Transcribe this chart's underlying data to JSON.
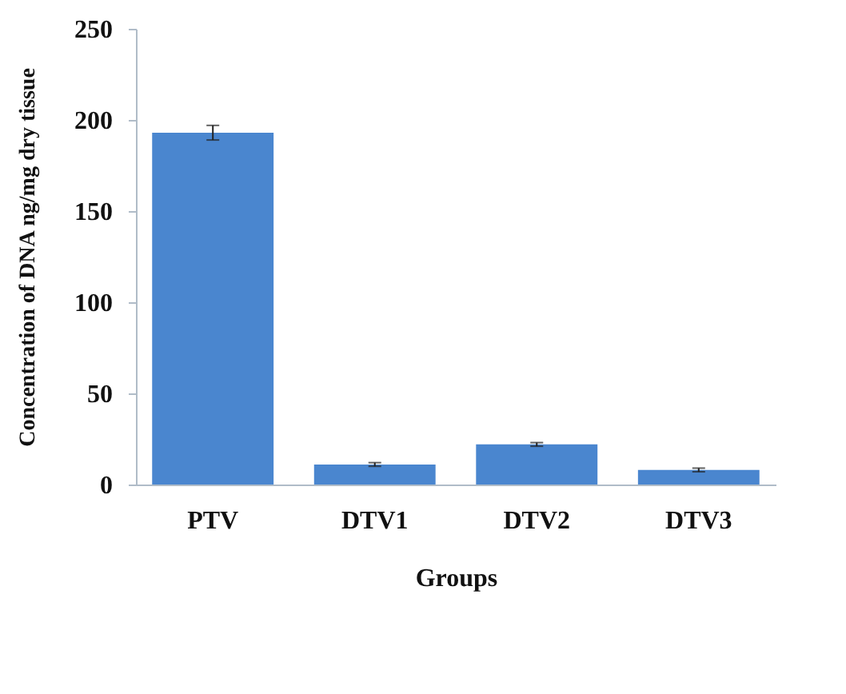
{
  "chart_data": {
    "type": "bar",
    "xlabel": "Groups",
    "ylabel": "Concentration of DNA ng/mg dry tissue",
    "categories": [
      "PTV",
      "DTV1",
      "DTV2",
      "DTV3"
    ],
    "values": [
      193,
      11,
      22,
      8
    ],
    "errors": [
      4,
      1,
      1,
      1
    ],
    "color": "#4a86cf",
    "ylim": [
      0,
      250
    ],
    "yticks": [
      0,
      50,
      100,
      150,
      200,
      250
    ],
    "grid": false
  }
}
